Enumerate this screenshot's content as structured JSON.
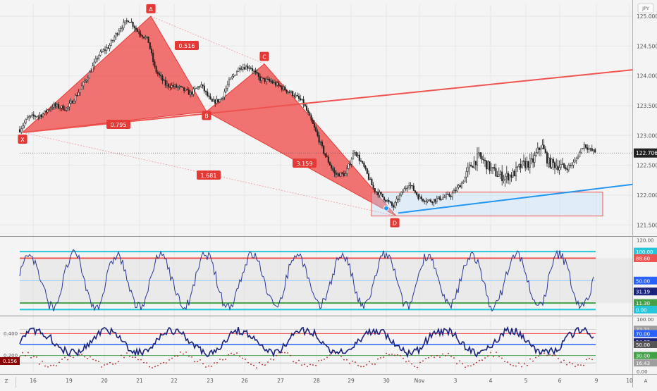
{
  "currency_label": "JPY",
  "price_panel": {
    "price_ticks": [
      "125.000",
      "124.500",
      "124.000",
      "123.500",
      "123.000",
      "122.500",
      "122.000",
      "121.500"
    ],
    "last_price": "122.706",
    "pattern_points": [
      "X",
      "A",
      "B",
      "C",
      "D"
    ],
    "ratios": [
      "0.516",
      "0.795",
      "3.159",
      "1.681"
    ]
  },
  "stoch_panel": {
    "ticks": [
      "120.00",
      "100.00",
      "88.60",
      "50.00",
      "31.19",
      "11.30",
      "0.00"
    ],
    "colors": {
      "100.00": "#26c6da",
      "88.60": "#ef5350",
      "50.00": "#2962ff",
      "31.19": "#1a237e",
      "11.30": "#43a047",
      "0.00": "#26c6da"
    }
  },
  "rsi_panel": {
    "left_ticks": [
      "0.400",
      "0.200"
    ],
    "left_value": "0.156",
    "ticks": [
      "100.00",
      "77.71",
      "70.00",
      "54.88",
      "50.00",
      "30.00",
      "16.43",
      "0.00"
    ],
    "colors": {
      "77.71": "#9e9e9e",
      "70.00": "#2962ff",
      "54.88": "#1a237e",
      "50.00": "#555555",
      "30.00": "#43a047",
      "16.43": "#9e9e9e"
    }
  },
  "time_axis": {
    "labels": [
      "16",
      "19",
      "20",
      "21",
      "22",
      "23",
      "26",
      "27",
      "28",
      "29",
      "30",
      "Nov",
      "3",
      "4",
      "5",
      "6",
      "9",
      "10"
    ],
    "left_label": "Z",
    "right_label": "A"
  },
  "chart_data": [
    {
      "type": "candlestick",
      "title": "",
      "currency": "JPY",
      "x": [
        "16",
        "19",
        "20",
        "21",
        "22",
        "23",
        "26",
        "27",
        "28",
        "29",
        "30",
        "Nov",
        "3",
        "4",
        "5",
        "6",
        "9"
      ],
      "ylim": [
        121.35,
        125.2
      ],
      "last_price": 122.706,
      "harmonic_pattern": {
        "points": [
          {
            "label": "X",
            "x": "16",
            "y": 123.05
          },
          {
            "label": "A",
            "x": "21",
            "y": 125.0
          },
          {
            "label": "B",
            "x": "23",
            "y": 123.4
          },
          {
            "label": "C",
            "x": "26",
            "y": 124.2
          },
          {
            "label": "D",
            "x": "30",
            "y": 121.65
          }
        ],
        "ratios": [
          {
            "label": "0.516",
            "legs": "A-C"
          },
          {
            "label": "0.795",
            "legs": "X-B"
          },
          {
            "label": "3.159",
            "legs": "B-D"
          },
          {
            "label": "1.681",
            "legs": "X-D"
          }
        ]
      },
      "lines": [
        {
          "name": "resistance trendline",
          "color": "#ef5350"
        },
        {
          "name": "support trendline",
          "color": "#2196f3"
        }
      ],
      "zone": {
        "y_range": [
          121.65,
          122.05
        ]
      }
    },
    {
      "type": "line",
      "title": "",
      "ylim": [
        -8,
        122
      ],
      "levels": [
        100.0,
        88.6,
        50.0,
        11.3,
        0.0
      ],
      "last_value": 31.19
    },
    {
      "type": "line",
      "title": "",
      "ylim": [
        0,
        100
      ],
      "levels": [
        77.71,
        70.0,
        50.0,
        30.0,
        16.43
      ],
      "last_value": 54.88,
      "secondary_last_value": 0.156
    }
  ]
}
